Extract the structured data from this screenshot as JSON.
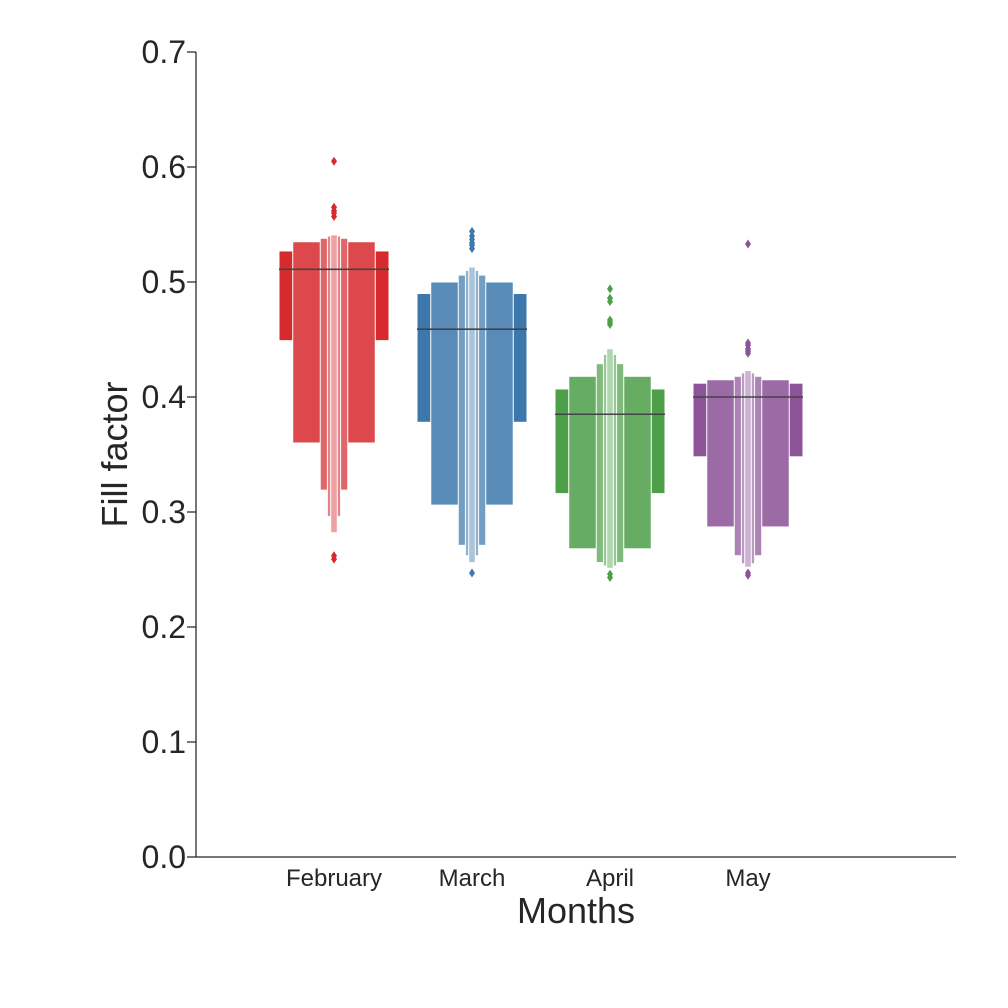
{
  "chart_data": {
    "type": "boxen",
    "xlabel": "Months",
    "ylabel": "Fill factor",
    "categories": [
      "February",
      "March",
      "April",
      "May"
    ],
    "ylim": [
      0.0,
      0.7
    ],
    "yticks": [
      0.0,
      0.1,
      0.2,
      0.3,
      0.4,
      0.5,
      0.6,
      0.7
    ],
    "ytick_labels": [
      "0.0",
      "0.1",
      "0.2",
      "0.3",
      "0.4",
      "0.5",
      "0.6",
      "0.7"
    ],
    "grid": false,
    "legend": "none",
    "series": [
      {
        "category": "February",
        "color": "#d62a2e",
        "median": 0.511,
        "boxes": [
          [
            0.449,
            0.527
          ],
          [
            0.36,
            0.535
          ],
          [
            0.319,
            0.538
          ],
          [
            0.296,
            0.54
          ],
          [
            0.282,
            0.541
          ]
        ],
        "outliers": [
          0.605,
          0.565,
          0.562,
          0.56,
          0.557,
          0.262,
          0.259
        ]
      },
      {
        "category": "March",
        "color": "#3d78ac",
        "median": 0.459,
        "boxes": [
          [
            0.378,
            0.49
          ],
          [
            0.306,
            0.5
          ],
          [
            0.271,
            0.506
          ],
          [
            0.262,
            0.51
          ],
          [
            0.256,
            0.513
          ]
        ],
        "outliers": [
          0.544,
          0.54,
          0.537,
          0.534,
          0.532,
          0.529,
          0.247
        ]
      },
      {
        "category": "April",
        "color": "#4e9f4a",
        "median": 0.385,
        "boxes": [
          [
            0.316,
            0.407
          ],
          [
            0.268,
            0.418
          ],
          [
            0.256,
            0.429
          ],
          [
            0.253,
            0.437
          ],
          [
            0.251,
            0.442
          ]
        ],
        "outliers": [
          0.494,
          0.486,
          0.483,
          0.467,
          0.465,
          0.463,
          0.246,
          0.243
        ]
      },
      {
        "category": "May",
        "color": "#8c5398",
        "median": 0.4,
        "boxes": [
          [
            0.348,
            0.412
          ],
          [
            0.287,
            0.415
          ],
          [
            0.262,
            0.418
          ],
          [
            0.255,
            0.421
          ],
          [
            0.252,
            0.423
          ]
        ],
        "outliers": [
          0.533,
          0.447,
          0.445,
          0.442,
          0.44,
          0.438,
          0.247,
          0.245
        ]
      }
    ]
  }
}
